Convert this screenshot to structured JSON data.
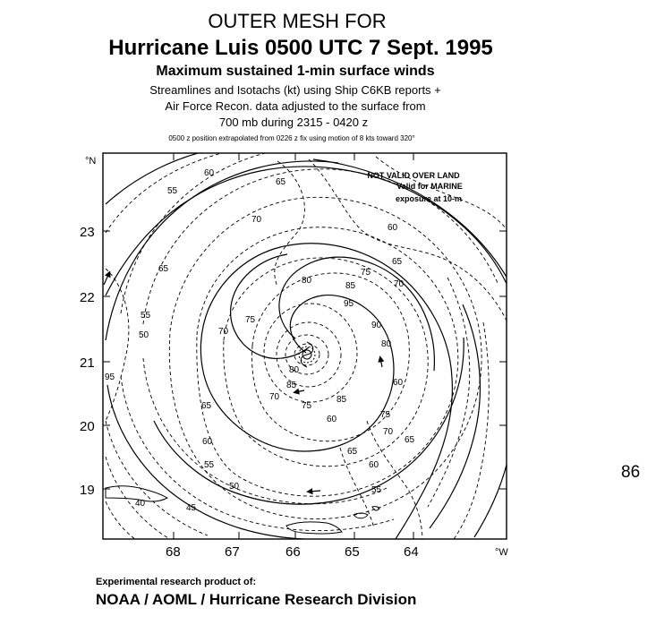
{
  "header": {
    "line1": "OUTER MESH FOR",
    "line2": "Hurricane Luis 0500 UTC  7 Sept. 1995",
    "line3": "Maximum sustained 1-min surface winds",
    "line4": "Streamlines and Isotachs (kt) using Ship C6KB reports +",
    "line5": "Air Force Recon. data adjusted to the surface from",
    "line6": "700 mb during 2315 - 0420 z",
    "line7": "0500 z position extrapolated from 0226 z fix using motion of 8 kts toward 320°"
  },
  "map": {
    "lat_unit": "°N",
    "lon_unit": "°W",
    "lat_ticks": [
      "23",
      "22",
      "21",
      "20",
      "19"
    ],
    "lon_ticks": [
      "68",
      "67",
      "66",
      "65",
      "64"
    ],
    "notice_line1": "NOT VALID OVER LAND",
    "notice_line2": "Valid for MARINE",
    "notice_line3": "exposure at 10-m",
    "isotach_labels": [
      "60",
      "55",
      "65",
      "70",
      "60",
      "65",
      "70",
      "75",
      "80",
      "85",
      "95",
      "65",
      "55",
      "75",
      "70",
      "50",
      "95",
      "90",
      "80",
      "85",
      "70",
      "65",
      "85",
      "75",
      "60",
      "65",
      "60",
      "55",
      "50",
      "45",
      "40",
      "80",
      "75",
      "60",
      "70",
      "65",
      "55",
      "60"
    ],
    "storm_center_lat": 21.0,
    "storm_center_lon": 65.8
  },
  "footer": {
    "credit_line1": "Experimental research product of:",
    "credit_line2": "NOAA / AOML / Hurricane Research Division",
    "page_number": "86"
  }
}
